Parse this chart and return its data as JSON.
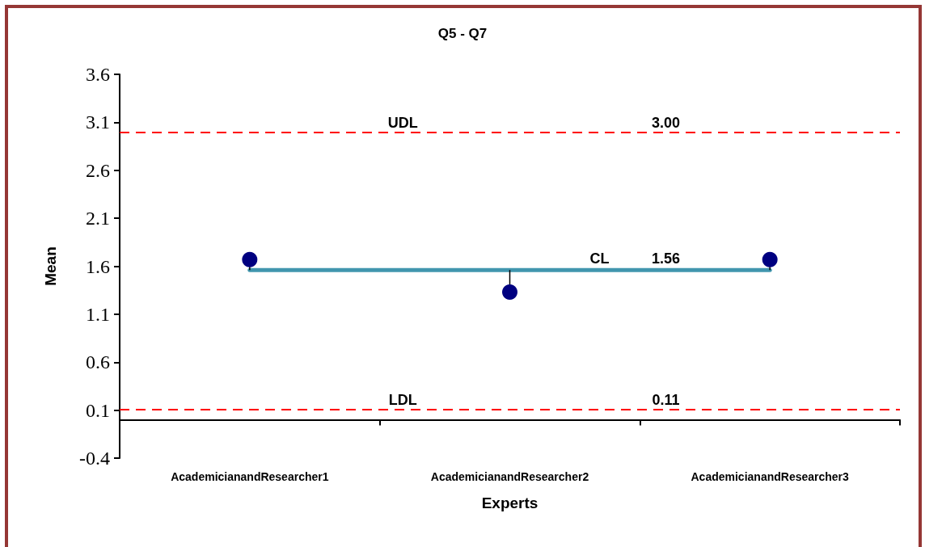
{
  "chart_data": {
    "type": "line",
    "title": "Q5 - Q7",
    "xlabel": "Experts",
    "ylabel": "Mean",
    "categories": [
      "AcademicianandResearcher1",
      "AcademicianandResearcher2",
      "AcademicianandResearcher3"
    ],
    "series": [
      {
        "name": "CL",
        "color": "#4196ae",
        "values": [
          1.56,
          1.56,
          1.56
        ],
        "marker": "none",
        "line_style": "solid"
      },
      {
        "type": "scatter",
        "color": "#000080",
        "values": [
          1.67,
          1.33,
          1.67
        ],
        "marker": "circle",
        "errors": [
          [
            1.56,
            1.67
          ],
          [
            1.33,
            1.56
          ],
          [
            1.56,
            1.67
          ]
        ]
      }
    ],
    "ylim": [
      -0.4,
      3.6
    ],
    "yticks": [
      -0.4,
      0.1,
      0.6,
      1.1,
      1.6,
      2.1,
      2.6,
      3.1,
      3.6
    ],
    "ref_lines": [
      {
        "axis": "y",
        "value": 3.0,
        "label": "UDL",
        "color": "#ff0000",
        "line_style": "dashed"
      },
      {
        "axis": "y",
        "value": 0.11,
        "label": "LDL",
        "color": "#ff0000",
        "line_style": "dashed"
      }
    ],
    "annotations": [
      {
        "text": "3.00",
        "y": 3.0
      },
      {
        "text": "1.56",
        "y": 1.56
      },
      {
        "text": "0.11",
        "y": 0.11
      }
    ],
    "grid": false
  }
}
